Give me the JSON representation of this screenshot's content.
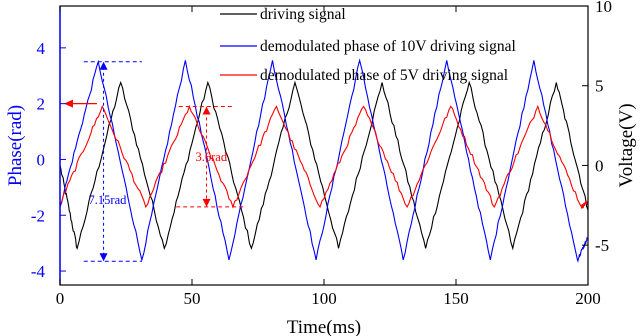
{
  "chart_data": {
    "type": "line",
    "xlabel": "Time(ms)",
    "ylabel_left": "Phase(rad)",
    "ylabel_right": "Voltage(V)",
    "xlim": [
      0,
      200
    ],
    "ylim_left": [
      -4.5,
      5.5
    ],
    "ylim_right": [
      -7.5,
      10
    ],
    "xticks": [
      0,
      50,
      100,
      150,
      200
    ],
    "yticks_left": [
      -4,
      -2,
      0,
      2,
      4
    ],
    "yticks_right": [
      -5,
      0,
      5,
      10
    ],
    "left_axis_color": "#0000ff",
    "legend_position": "top-right",
    "series": [
      {
        "name": "driving signal",
        "axis": "right",
        "color": "#000000",
        "period_ms": 33.0,
        "x": [
          0,
          6.5,
          23.0,
          39.5,
          56.0,
          72.5,
          89.0,
          105.5,
          122.0,
          138.5,
          155.0,
          171.5,
          188.0,
          200.0
        ],
        "y": [
          0,
          -5.2,
          5.2,
          -5.2,
          5.2,
          -5.2,
          5.2,
          -5.2,
          5.2,
          -5.2,
          5.2,
          -5.2,
          5.2,
          -2.8
        ]
      },
      {
        "name": "demodulated phase of 10V driving signal",
        "axis": "left",
        "color": "#0000ff",
        "x": [
          0,
          14.5,
          31.0,
          47.5,
          64.0,
          80.5,
          97.0,
          113.5,
          130.0,
          146.5,
          163.0,
          179.5,
          196.0,
          200.0
        ],
        "y": [
          -1.7,
          3.5,
          -3.6,
          3.55,
          -3.6,
          3.55,
          -3.6,
          3.55,
          -3.6,
          3.55,
          -3.6,
          3.55,
          -3.6,
          -2.8
        ]
      },
      {
        "name": "demodulated phase of 5V driving signal",
        "axis": "left",
        "color": "#ff0000",
        "x": [
          0,
          16.0,
          32.5,
          49.0,
          65.5,
          82.0,
          98.5,
          115.0,
          131.5,
          148.0,
          164.5,
          181.0,
          197.5,
          200.0
        ],
        "y": [
          -1.6,
          1.9,
          -1.7,
          1.9,
          -1.7,
          1.9,
          -1.7,
          1.9,
          -1.7,
          1.9,
          -1.7,
          1.9,
          -1.7,
          -1.5
        ]
      }
    ],
    "annotations": [
      {
        "text": "7.15rad",
        "color": "#0000ff",
        "y_top": 3.5,
        "y_bottom": -3.65
      },
      {
        "text": "3.6rad",
        "color": "#ff0000",
        "y_top": 1.9,
        "y_bottom": -1.7
      }
    ]
  }
}
